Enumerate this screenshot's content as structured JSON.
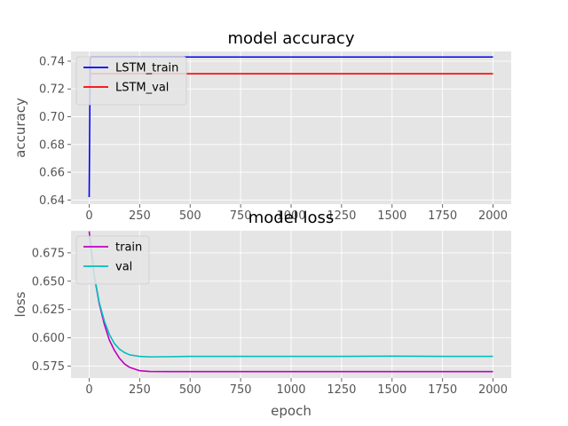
{
  "chart_data": [
    {
      "type": "line",
      "title": "model accuracy",
      "xlabel": "",
      "ylabel": "accuracy",
      "xlim": [
        -90,
        2090
      ],
      "ylim": [
        0.637,
        0.747
      ],
      "xticks": [
        0,
        250,
        500,
        750,
        1000,
        1250,
        1500,
        1750,
        2000
      ],
      "xtick_labels": [
        "0",
        "250",
        "500",
        "750",
        "1000",
        "1250",
        "1500",
        "1750",
        "2000"
      ],
      "yticks": [
        0.64,
        0.66,
        0.68,
        0.7,
        0.72,
        0.74
      ],
      "ytick_labels": [
        "0.64",
        "0.66",
        "0.68",
        "0.70",
        "0.72",
        "0.74"
      ],
      "grid": true,
      "legend_position": "upper-left",
      "series": [
        {
          "name": "LSTM_train",
          "color": "#0000ff",
          "x": [
            0,
            5,
            10,
            20,
            50,
            100,
            250,
            500,
            1000,
            1500,
            2000
          ],
          "y": [
            0.642,
            0.742,
            0.743,
            0.743,
            0.743,
            0.743,
            0.743,
            0.743,
            0.743,
            0.743,
            0.743
          ]
        },
        {
          "name": "LSTM_val",
          "color": "#ff0000",
          "x": [
            0,
            5,
            10,
            50,
            100,
            250,
            500,
            1000,
            1500,
            2000
          ],
          "y": [
            0.731,
            0.731,
            0.731,
            0.731,
            0.731,
            0.731,
            0.731,
            0.731,
            0.731,
            0.731
          ]
        }
      ]
    },
    {
      "type": "line",
      "title": "model loss",
      "xlabel": "epoch",
      "ylabel": "loss",
      "xlim": [
        -90,
        2090
      ],
      "ylim": [
        0.5645,
        0.6945
      ],
      "xticks": [
        0,
        250,
        500,
        750,
        1000,
        1250,
        1500,
        1750,
        2000
      ],
      "xtick_labels": [
        "0",
        "250",
        "500",
        "750",
        "1000",
        "1250",
        "1500",
        "1750",
        "2000"
      ],
      "yticks": [
        0.575,
        0.6,
        0.625,
        0.65,
        0.675
      ],
      "ytick_labels": [
        "0.575",
        "0.600",
        "0.625",
        "0.650",
        "0.675"
      ],
      "grid": true,
      "legend_position": "upper-left",
      "series": [
        {
          "name": "train",
          "color": "#bf00bf",
          "x": [
            0,
            25,
            50,
            75,
            100,
            125,
            150,
            175,
            200,
            250,
            300,
            400,
            500,
            750,
            1000,
            1250,
            1500,
            1750,
            2000
          ],
          "y": [
            0.694,
            0.655,
            0.63,
            0.612,
            0.598,
            0.589,
            0.582,
            0.577,
            0.574,
            0.571,
            0.5703,
            0.5702,
            0.5702,
            0.5702,
            0.5702,
            0.5702,
            0.5702,
            0.5702,
            0.5702
          ]
        },
        {
          "name": "val",
          "color": "#00bfbf",
          "x": [
            0,
            25,
            50,
            75,
            100,
            125,
            150,
            175,
            200,
            250,
            300,
            400,
            500,
            750,
            1000,
            1250,
            1500,
            1750,
            2000
          ],
          "y": [
            0.69,
            0.655,
            0.631,
            0.615,
            0.603,
            0.595,
            0.59,
            0.587,
            0.585,
            0.5836,
            0.5832,
            0.5834,
            0.5836,
            0.5836,
            0.5836,
            0.5836,
            0.5838,
            0.5836,
            0.5836
          ]
        }
      ]
    }
  ]
}
